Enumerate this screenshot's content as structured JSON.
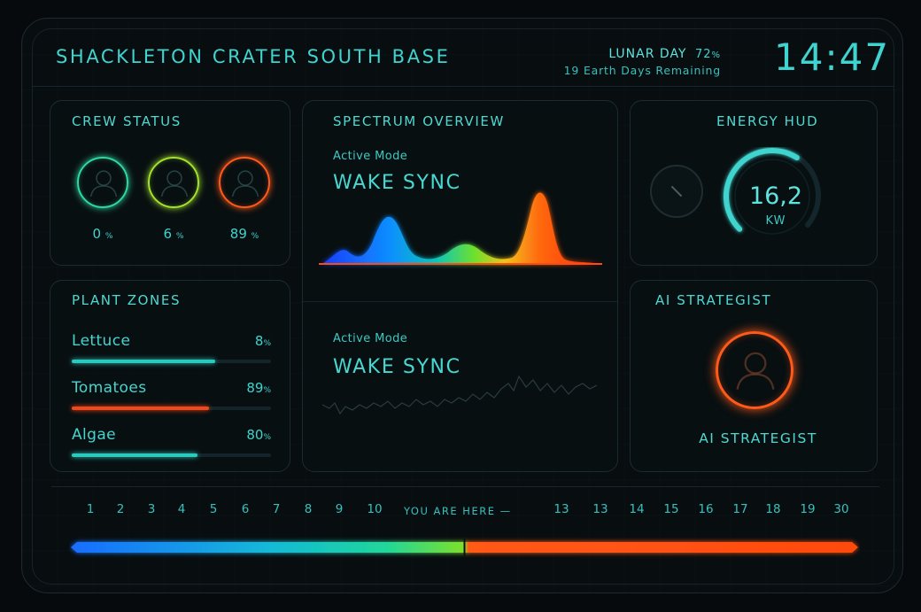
{
  "header": {
    "title": "SHACKLETON CRATER SOUTH BASE",
    "lunar_label": "LUNAR DAY",
    "lunar_pct": "72",
    "lunar_unit": "%",
    "remaining": "19 Earth Days Remaining",
    "clock": "14:47"
  },
  "crew": {
    "title": "CREW STATUS",
    "members": [
      {
        "value": "0",
        "unit": "%",
        "ring": "#2fd9a0"
      },
      {
        "value": "6",
        "unit": "%",
        "ring": "#a4e22e"
      },
      {
        "value": "89",
        "unit": "%",
        "ring": "#ff5a1a"
      }
    ]
  },
  "plants": {
    "title": "PLANT ZONES",
    "zones": [
      {
        "name": "Lettuce",
        "value": "8",
        "unit": "%",
        "level": 0.72,
        "color": "#2cc9bf"
      },
      {
        "name": "Tomatoes",
        "value": "89",
        "unit": "%",
        "level": 0.69,
        "color": "#f2461b"
      },
      {
        "name": "Algae",
        "value": "80",
        "unit": "%",
        "level": 0.63,
        "color": "#2cc9bf"
      }
    ]
  },
  "spectrum": {
    "title": "SPECTRUM OVERVIEW",
    "mode1_label": "Active Mode",
    "mode1_value": "WAKE SYNC",
    "mode2_label": "Active Mode",
    "mode2_value": "WAKE SYNC"
  },
  "energy": {
    "title": "ENERGY HUD",
    "value": "16,2",
    "unit": "KW",
    "level": 0.62
  },
  "ai": {
    "title": "AI STRATEGIST",
    "label": "AI STRATEGIST",
    "ring": "#ff5a1a"
  },
  "timeline": {
    "ticks_left": [
      "1",
      "2",
      "3",
      "4",
      "5",
      "6",
      "7",
      "8",
      "9",
      "10"
    ],
    "here_label": "YOU ARE HERE —",
    "ticks_right": [
      "13",
      "13",
      "14",
      "15",
      "16",
      "17",
      "18",
      "19",
      "30"
    ],
    "position": 0.5
  },
  "colors": {
    "accent": "#3fd4cf",
    "orange": "#ff5a1a",
    "green": "#a4e22e",
    "blue": "#1a6dff"
  }
}
